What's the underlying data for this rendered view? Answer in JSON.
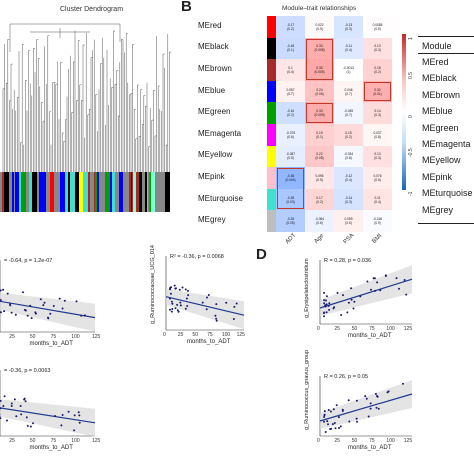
{
  "panelA": {
    "title": "Cluster Dendrogram"
  },
  "panelB": {
    "letter": "B",
    "title": "Module–trait relationships",
    "modules": [
      "MEred",
      "MEblack",
      "MEbrown",
      "MEblue",
      "MEgreen",
      "MEmagenta",
      "MEyellow",
      "MEpink",
      "MEturquoise",
      "MEgrey"
    ],
    "traits": [
      "ADT",
      "Age",
      "PSA",
      "BMI"
    ],
    "colorbar_ticks": [
      "1",
      "0.5",
      "0",
      "-0.5",
      "-1"
    ],
    "cells": [
      [
        [
          "-0.17",
          "(0.2)"
        ],
        [
          "0.022",
          "(0.9)"
        ],
        [
          "-0.13",
          "(0.3)"
        ],
        [
          "0.0085",
          "(0.9)"
        ]
      ],
      [
        [
          "-0.18",
          "(0.1)"
        ],
        [
          "0.33",
          "(0.008)"
        ],
        [
          "-0.11",
          "(0.4)"
        ],
        [
          "0.13",
          "(0.3)"
        ]
      ],
      [
        [
          "0.1",
          "(0.4)"
        ],
        [
          "0.35",
          "(0.005)"
        ],
        [
          "-0.0013",
          "(1)"
        ],
        [
          "0.18",
          "(0.2)"
        ]
      ],
      [
        [
          "0.057",
          "(0.7)"
        ],
        [
          "0.24",
          "(0.06)"
        ],
        [
          "0.046",
          "(0.7)"
        ],
        [
          "0.32",
          "(0.01)"
        ]
      ],
      [
        [
          "-0.16",
          "(0.2)"
        ],
        [
          "0.33",
          "(0.009)"
        ],
        [
          "-0.045",
          "(0.7)"
        ],
        [
          "0.14",
          "(0.3)"
        ]
      ],
      [
        [
          "-0.075",
          "(0.6)"
        ],
        [
          "0.19",
          "(0.1)"
        ],
        [
          "0.15",
          "(0.2)"
        ],
        [
          "0.037",
          "(0.8)"
        ]
      ],
      [
        [
          "-0.087",
          "(0.5)"
        ],
        [
          "0.22",
          "(0.08)"
        ],
        [
          "-0.034",
          "(0.8)"
        ],
        [
          "0.13",
          "(0.3)"
        ]
      ],
      [
        [
          "-0.36",
          "(0.004)"
        ],
        [
          "0.096",
          "(0.5)"
        ],
        [
          "-0.12",
          "(0.4)"
        ],
        [
          "0.076",
          "(0.6)"
        ]
      ],
      [
        [
          "-0.28",
          "(0.03)"
        ],
        [
          "0.17",
          "(0.2)"
        ],
        [
          "-0.14",
          "(0.3)"
        ],
        [
          "0.11",
          "(0.4)"
        ]
      ],
      [
        [
          "-0.25",
          "(0.05)"
        ],
        [
          "-0.064",
          "(0.6)"
        ],
        [
          "0.059",
          "(0.6)"
        ],
        [
          "-0.018",
          "(0.9)"
        ]
      ]
    ]
  },
  "moduleTable": {
    "header": "Module",
    "rows": [
      "MEred",
      "MEblack",
      "MEbrown",
      "MEblue",
      "MEgreen",
      "MEmagenta",
      "MEyellow",
      "MEpink",
      "MEturquoise",
      "MEgrey"
    ]
  },
  "panelD": {
    "letter": "D"
  },
  "plots": [
    {
      "id": "c1",
      "stat": "= -0.64, p = 1.2e-07",
      "xlabel": "months_to_ADT",
      "ylabel": "",
      "xticks": [
        "25",
        "50",
        "75",
        "100",
        "125"
      ]
    },
    {
      "id": "c2",
      "stat": "R² = -0.36, p = 0.0068",
      "xlabel": "months_to_ADT",
      "ylabel": "g_Ruminococcaceae_UCG_014",
      "xticks": [
        "0",
        "25",
        "50",
        "75",
        "100",
        "125"
      ]
    },
    {
      "id": "c3",
      "stat": "= -0.36, p = 0.0063",
      "xlabel": "months_to_ADT",
      "ylabel": "",
      "xticks": [
        "25",
        "50",
        "75",
        "100",
        "125"
      ]
    },
    {
      "id": "d1",
      "stat": "R = 0.28, p = 0.036",
      "xlabel": "months_to_ADT",
      "ylabel": "g_Erysipelatoclostridium",
      "xticks": [
        "0",
        "25",
        "50",
        "75",
        "100",
        "125"
      ]
    },
    {
      "id": "d2",
      "stat": "R = 0.26, p = 0.05",
      "xlabel": "months_to_ADT",
      "ylabel": "g_Ruminococcus_gnavus_group",
      "xticks": [
        "0",
        "25",
        "50",
        "75",
        "100",
        "125"
      ]
    }
  ],
  "colors": {
    "pos": "#d62728",
    "neg": "#1f5fbf",
    "highlight": "#c0392b",
    "fit": "#1f3a8f",
    "band": "#d9d9d9"
  }
}
